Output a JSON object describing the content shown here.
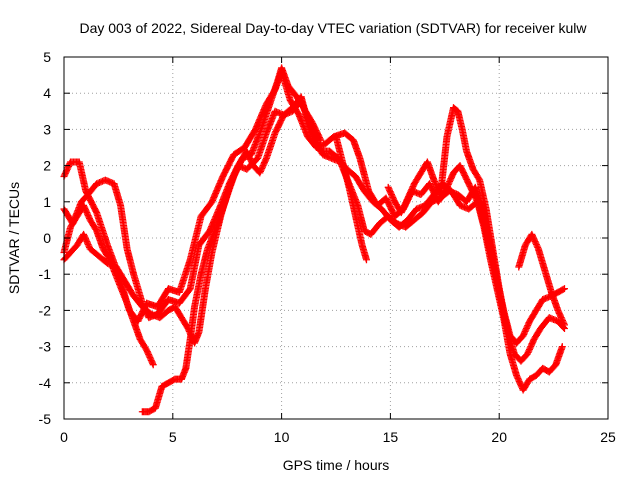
{
  "chart_data": {
    "type": "scatter",
    "title": "Day 003 of 2022, Sidereal Day-to-day VTEC variation (SDTVAR) for receiver kulw",
    "xlabel": "GPS time / hours",
    "ylabel": "SDTVAR / TECUs",
    "xlim": [
      0,
      25
    ],
    "ylim": [
      -5,
      5
    ],
    "xticks": [
      0,
      5,
      10,
      15,
      20,
      25
    ],
    "yticks": [
      -5,
      -4,
      -3,
      -2,
      -1,
      0,
      1,
      2,
      3,
      4,
      5
    ],
    "grid": true,
    "marker": "+",
    "series_color": "#ff0000",
    "series": [
      {
        "name": "track-1",
        "points": [
          [
            0.0,
            1.7
          ],
          [
            0.3,
            2.1
          ],
          [
            0.7,
            2.1
          ],
          [
            1.0,
            1.3
          ],
          [
            1.5,
            0.7
          ],
          [
            2.0,
            -0.2
          ],
          [
            2.5,
            -1.0
          ],
          [
            3.0,
            -2.0
          ],
          [
            3.4,
            -2.3
          ],
          [
            3.8,
            -1.8
          ],
          [
            4.3,
            -1.9
          ],
          [
            4.8,
            -1.4
          ],
          [
            5.3,
            -1.5
          ],
          [
            5.8,
            -0.6
          ],
          [
            6.3,
            0.6
          ],
          [
            6.8,
            1.0
          ],
          [
            7.3,
            1.7
          ],
          [
            7.8,
            2.3
          ],
          [
            8.3,
            2.5
          ],
          [
            8.8,
            3.0
          ],
          [
            9.3,
            3.7
          ],
          [
            9.7,
            4.1
          ],
          [
            10.0,
            4.6
          ],
          [
            10.4,
            3.8
          ],
          [
            10.8,
            3.4
          ],
          [
            11.2,
            2.8
          ],
          [
            11.6,
            2.5
          ],
          [
            12.0,
            2.6
          ],
          [
            12.4,
            2.8
          ],
          [
            12.9,
            2.9
          ],
          [
            13.3,
            2.7
          ],
          [
            13.6,
            2.2
          ],
          [
            14.0,
            1.3
          ],
          [
            14.4,
            0.9
          ],
          [
            14.8,
            1.1
          ],
          [
            15.2,
            0.6
          ],
          [
            15.6,
            0.8
          ],
          [
            16.0,
            1.3
          ],
          [
            16.4,
            1.2
          ],
          [
            16.8,
            1.5
          ],
          [
            17.2,
            1.0
          ],
          [
            17.6,
            1.4
          ],
          [
            17.9,
            1.8
          ],
          [
            18.2,
            2.0
          ],
          [
            18.6,
            1.5
          ],
          [
            19.0,
            1.0
          ],
          [
            19.3,
            0.3
          ],
          [
            19.6,
            -0.6
          ],
          [
            19.9,
            -1.4
          ],
          [
            20.2,
            -2.2
          ],
          [
            20.5,
            -3.2
          ],
          [
            20.8,
            -3.8
          ],
          [
            21.1,
            -4.2
          ],
          [
            21.4,
            -3.9
          ],
          [
            21.7,
            -3.8
          ],
          [
            22.0,
            -3.6
          ],
          [
            22.3,
            -3.7
          ],
          [
            22.6,
            -3.5
          ],
          [
            22.9,
            -3.0
          ]
        ]
      },
      {
        "name": "track-2",
        "points": [
          [
            0.0,
            0.8
          ],
          [
            0.4,
            0.4
          ],
          [
            0.8,
            1.0
          ],
          [
            1.1,
            1.2
          ],
          [
            1.5,
            1.5
          ],
          [
            1.9,
            1.6
          ],
          [
            2.3,
            1.5
          ],
          [
            2.6,
            0.9
          ],
          [
            2.9,
            -0.3
          ],
          [
            3.2,
            -1.0
          ],
          [
            3.6,
            -1.8
          ],
          [
            3.9,
            -2.2
          ],
          [
            4.3,
            -2.1
          ],
          [
            4.8,
            -1.7
          ],
          [
            5.3,
            -1.8
          ],
          [
            5.8,
            -1.4
          ],
          [
            6.2,
            -0.2
          ],
          [
            6.7,
            0.2
          ],
          [
            7.2,
            0.9
          ],
          [
            7.6,
            1.5
          ],
          [
            8.0,
            2.0
          ],
          [
            8.4,
            1.9
          ],
          [
            8.9,
            2.2
          ],
          [
            9.3,
            2.9
          ],
          [
            9.7,
            3.5
          ],
          [
            10.1,
            3.4
          ],
          [
            10.5,
            3.6
          ],
          [
            10.9,
            3.9
          ],
          [
            11.3,
            3.0
          ],
          [
            11.6,
            2.6
          ],
          [
            11.9,
            2.3
          ],
          [
            12.3,
            2.2
          ],
          [
            12.7,
            2.1
          ],
          [
            13.1,
            1.5
          ],
          [
            13.5,
            0.9
          ],
          [
            13.8,
            0.2
          ],
          [
            14.1,
            0.1
          ],
          [
            14.5,
            0.4
          ],
          [
            14.9,
            0.6
          ],
          [
            15.3,
            0.4
          ],
          [
            15.7,
            0.3
          ],
          [
            16.1,
            0.5
          ],
          [
            16.5,
            0.7
          ],
          [
            16.9,
            1.0
          ],
          [
            17.3,
            1.1
          ],
          [
            17.7,
            1.3
          ],
          [
            18.1,
            1.2
          ],
          [
            18.5,
            1.0
          ],
          [
            18.9,
            1.4
          ],
          [
            19.2,
            0.9
          ],
          [
            19.5,
            0.1
          ],
          [
            19.8,
            -0.8
          ],
          [
            20.1,
            -1.7
          ],
          [
            20.4,
            -2.6
          ],
          [
            20.7,
            -3.2
          ],
          [
            21.0,
            -3.4
          ],
          [
            21.3,
            -3.2
          ],
          [
            21.6,
            -2.8
          ],
          [
            21.9,
            -2.5
          ],
          [
            22.3,
            -2.2
          ],
          [
            22.7,
            -2.3
          ],
          [
            23.0,
            -2.5
          ]
        ]
      },
      {
        "name": "track-3",
        "points": [
          [
            0.0,
            -0.6
          ],
          [
            0.3,
            -0.4
          ],
          [
            0.6,
            -0.2
          ],
          [
            0.9,
            0.1
          ],
          [
            1.2,
            -0.3
          ],
          [
            1.6,
            -0.5
          ],
          [
            2.0,
            -0.7
          ],
          [
            2.4,
            -0.8
          ],
          [
            2.8,
            -1.2
          ],
          [
            3.2,
            -1.6
          ],
          [
            3.6,
            -1.9
          ],
          [
            4.0,
            -2.1
          ],
          [
            4.4,
            -2.2
          ],
          [
            4.8,
            -2.0
          ],
          [
            5.1,
            -1.9
          ],
          [
            5.4,
            -2.2
          ],
          [
            5.7,
            -2.5
          ],
          [
            6.0,
            -2.9
          ],
          [
            6.2,
            -2.6
          ],
          [
            6.5,
            -1.4
          ],
          [
            6.8,
            -0.4
          ],
          [
            7.2,
            0.6
          ],
          [
            7.6,
            1.4
          ],
          [
            8.0,
            2.0
          ],
          [
            8.4,
            2.4
          ],
          [
            8.7,
            2.0
          ],
          [
            9.0,
            1.8
          ],
          [
            9.3,
            2.2
          ],
          [
            9.7,
            2.9
          ],
          [
            10.1,
            3.4
          ],
          [
            10.5,
            3.5
          ],
          [
            10.9,
            3.8
          ],
          [
            11.2,
            3.3
          ],
          [
            11.5,
            2.8
          ],
          [
            11.8,
            2.4
          ],
          [
            12.2,
            2.4
          ],
          [
            12.6,
            2.2
          ],
          [
            13.0,
            1.9
          ],
          [
            13.4,
            1.7
          ],
          [
            13.8,
            1.3
          ],
          [
            14.2,
            1.0
          ],
          [
            14.6,
            0.8
          ],
          [
            15.0,
            0.5
          ],
          [
            15.4,
            0.3
          ],
          [
            15.8,
            0.5
          ],
          [
            16.2,
            0.8
          ],
          [
            16.6,
            0.9
          ],
          [
            17.0,
            1.2
          ],
          [
            17.4,
            1.5
          ],
          [
            17.8,
            1.3
          ],
          [
            18.2,
            0.9
          ],
          [
            18.6,
            0.8
          ],
          [
            19.0,
            1.0
          ],
          [
            19.3,
            0.4
          ],
          [
            19.6,
            -0.4
          ],
          [
            19.9,
            -1.2
          ],
          [
            20.2,
            -2.0
          ],
          [
            20.5,
            -2.7
          ],
          [
            20.8,
            -2.9
          ],
          [
            21.1,
            -2.7
          ],
          [
            21.4,
            -2.3
          ],
          [
            21.7,
            -2.0
          ],
          [
            22.0,
            -1.7
          ],
          [
            22.4,
            -1.6
          ],
          [
            22.7,
            -1.5
          ],
          [
            23.0,
            -1.4
          ]
        ]
      },
      {
        "name": "track-4",
        "points": [
          [
            0.0,
            -0.4
          ],
          [
            0.3,
            0.3
          ],
          [
            0.6,
            0.6
          ],
          [
            0.9,
            0.9
          ],
          [
            1.2,
            0.5
          ],
          [
            1.5,
            0.2
          ],
          [
            1.8,
            -0.3
          ],
          [
            2.1,
            -0.6
          ],
          [
            2.5,
            -1.2
          ],
          [
            2.9,
            -1.8
          ],
          [
            3.2,
            -2.3
          ],
          [
            3.5,
            -2.8
          ],
          [
            3.8,
            -3.1
          ],
          [
            4.1,
            -3.5
          ]
        ]
      },
      {
        "name": "track-5",
        "points": [
          [
            3.6,
            -4.8
          ],
          [
            3.9,
            -4.8
          ],
          [
            4.2,
            -4.7
          ],
          [
            4.5,
            -4.1
          ],
          [
            4.8,
            -4.0
          ],
          [
            5.1,
            -3.9
          ],
          [
            5.4,
            -3.9
          ],
          [
            5.6,
            -3.6
          ],
          [
            5.8,
            -2.8
          ],
          [
            6.0,
            -1.9
          ],
          [
            6.3,
            -1.0
          ],
          [
            6.6,
            -0.3
          ],
          [
            7.0,
            0.3
          ],
          [
            7.4,
            1.0
          ],
          [
            7.8,
            1.7
          ],
          [
            8.2,
            2.2
          ],
          [
            8.6,
            2.3
          ],
          [
            9.0,
            2.9
          ],
          [
            9.4,
            3.6
          ],
          [
            9.8,
            4.3
          ],
          [
            10.0,
            4.7
          ],
          [
            10.3,
            4.2
          ],
          [
            10.7,
            3.9
          ],
          [
            11.0,
            3.6
          ],
          [
            11.4,
            3.2
          ],
          [
            11.8,
            2.7
          ]
        ]
      },
      {
        "name": "track-6",
        "points": [
          [
            12.5,
            2.8
          ],
          [
            12.8,
            2.1
          ],
          [
            13.1,
            1.4
          ],
          [
            13.4,
            0.6
          ],
          [
            13.7,
            -0.2
          ],
          [
            13.9,
            -0.6
          ]
        ]
      },
      {
        "name": "track-7",
        "points": [
          [
            14.9,
            1.4
          ],
          [
            15.2,
            1.0
          ],
          [
            15.5,
            0.7
          ],
          [
            15.8,
            1.1
          ],
          [
            16.1,
            1.5
          ],
          [
            16.4,
            1.8
          ],
          [
            16.7,
            2.1
          ],
          [
            17.0,
            1.6
          ],
          [
            17.3,
            1.2
          ],
          [
            17.6,
            2.8
          ],
          [
            17.9,
            3.6
          ],
          [
            18.1,
            3.5
          ],
          [
            18.3,
            3.0
          ],
          [
            18.5,
            2.4
          ],
          [
            18.8,
            1.9
          ],
          [
            19.1,
            1.6
          ],
          [
            19.4,
            0.8
          ],
          [
            19.7,
            -0.3
          ],
          [
            20.0,
            -1.4
          ],
          [
            20.3,
            -2.4
          ]
        ]
      },
      {
        "name": "track-8",
        "points": [
          [
            20.9,
            -0.8
          ],
          [
            21.2,
            -0.2
          ],
          [
            21.5,
            0.1
          ],
          [
            21.8,
            -0.3
          ],
          [
            22.1,
            -0.9
          ],
          [
            22.4,
            -1.5
          ],
          [
            22.7,
            -2.0
          ],
          [
            23.0,
            -2.4
          ]
        ]
      }
    ]
  }
}
